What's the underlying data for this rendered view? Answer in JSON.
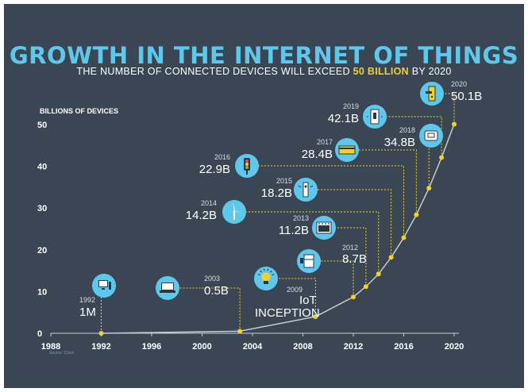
{
  "header": {
    "title": "GROWTH IN THE INTERNET OF THINGS",
    "subtitle_prefix": "THE NUMBER OF CONNECTED DEVICES WILL EXCEED",
    "subtitle_highlight": "50 BILLION",
    "subtitle_suffix": "BY 2020"
  },
  "colors": {
    "background": "#3a4654",
    "accent": "#5ec8ec",
    "highlight": "#f2d12a",
    "point": "#f2d12a",
    "curve": "#c5ccd4",
    "leader": "#f2d12a"
  },
  "source_note": "Source: Cisco",
  "chart_data": {
    "type": "line",
    "title": "GROWTH IN THE INTERNET OF THINGS",
    "ylabel": "BILLIONS OF DEVICES",
    "xlabel": "",
    "xlim": [
      1988,
      2020
    ],
    "ylim": [
      0,
      50
    ],
    "xticks": [
      "1988",
      "1992",
      "1996",
      "2000",
      "2004",
      "2008",
      "2012",
      "2016",
      "2020"
    ],
    "yticks": [
      "0",
      "10",
      "20",
      "30",
      "40",
      "50"
    ],
    "grid": false,
    "points": [
      {
        "year": 1992,
        "value": 0.001,
        "year_label": "1992",
        "value_label": "1M",
        "icon": "desktop-computer-icon"
      },
      {
        "year": 2003,
        "value": 0.5,
        "year_label": "2003",
        "value_label": "0.5B",
        "icon": "laptop-icon"
      },
      {
        "year": 2009,
        "value": 4,
        "year_label": "2009",
        "value_label": "IoT INCEPTION",
        "icon": "lightbulb-icon"
      },
      {
        "year": 2012,
        "value": 8.7,
        "year_label": "2012",
        "value_label": "8.7B",
        "icon": "smart-appliance-icon"
      },
      {
        "year": 2013,
        "value": 11.2,
        "year_label": "2013",
        "value_label": "11.2B",
        "icon": "oven-icon"
      },
      {
        "year": 2014,
        "value": 14.2,
        "year_label": "2014",
        "value_label": "14.2B",
        "icon": "wind-turbine-icon"
      },
      {
        "year": 2015,
        "value": 18.2,
        "year_label": "2015",
        "value_label": "18.2B",
        "icon": "smart-meter-icon"
      },
      {
        "year": 2016,
        "value": 22.9,
        "year_label": "2016",
        "value_label": "22.9B",
        "icon": "traffic-light-icon"
      },
      {
        "year": 2017,
        "value": 28.4,
        "year_label": "2017",
        "value_label": "28.4B",
        "icon": "card-reader-icon"
      },
      {
        "year": 2018,
        "value": 34.8,
        "year_label": "2018",
        "value_label": "34.8B",
        "icon": "thermostat-icon"
      },
      {
        "year": 2019,
        "value": 42.1,
        "year_label": "2019",
        "value_label": "42.1B",
        "icon": "smart-switch-icon"
      },
      {
        "year": 2020,
        "value": 50.1,
        "year_label": "2020",
        "value_label": "50.1B",
        "icon": "smart-lock-icon"
      }
    ]
  }
}
